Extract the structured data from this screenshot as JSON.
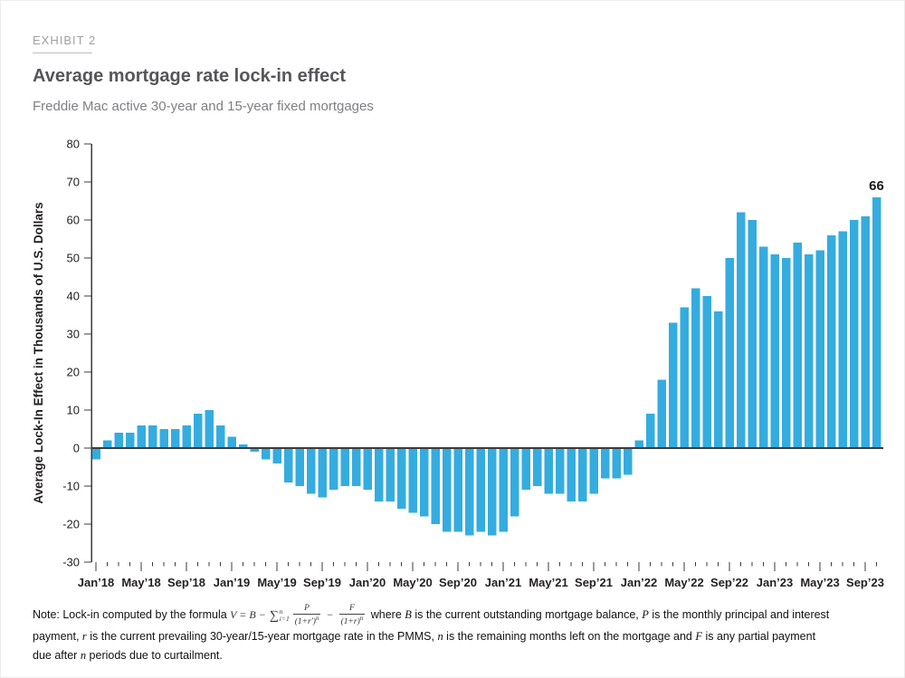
{
  "exhibit_label": "EXHIBIT 2",
  "title": "Average mortgage rate lock-in effect",
  "subtitle": "Freddie Mac active 30-year and 15-year fixed mortgages",
  "colors": {
    "bar": "#35acdf",
    "axis": "#3b3b3c",
    "tick_text": "#231f20",
    "annotation": "#1a1a1a"
  },
  "chart_data": {
    "type": "bar",
    "title": "Average mortgage rate lock-in effect",
    "subtitle": "Freddie Mac active 30-year and 15-year fixed mortgages",
    "ylabel": "Average Lock-In Effect in Thousands of U.S. Dollars",
    "ylim": [
      -30,
      80
    ],
    "ytick_interval": 10,
    "ytick_labels": [
      "80",
      "70",
      "60",
      "50",
      "40",
      "30",
      "20",
      "10",
      "0",
      "-10",
      "-20",
      "-30"
    ],
    "grid": false,
    "legend": "none",
    "x": [
      "Jan’18",
      "Feb’18",
      "Mar’18",
      "Apr’18",
      "May’18",
      "Jun’18",
      "Jul’18",
      "Aug’18",
      "Sep’18",
      "Oct’18",
      "Nov’18",
      "Dec’18",
      "Jan’19",
      "Feb’19",
      "Mar’19",
      "Apr’19",
      "May’19",
      "Jun’19",
      "Jul’19",
      "Aug’19",
      "Sep’19",
      "Oct’19",
      "Nov’19",
      "Dec’19",
      "Jan’20",
      "Feb’20",
      "Mar’20",
      "Apr’20",
      "May’20",
      "Jun’20",
      "Jul’20",
      "Aug’20",
      "Sep’20",
      "Oct’20",
      "Nov’20",
      "Dec’20",
      "Jan’21",
      "Feb’21",
      "Mar’21",
      "Apr’21",
      "May’21",
      "Jun’21",
      "Jul’21",
      "Aug’21",
      "Sep’21",
      "Oct’21",
      "Nov’21",
      "Dec’21",
      "Jan’22",
      "Feb’22",
      "Mar’22",
      "Apr’22",
      "May’22",
      "Jun’22",
      "Jul’22",
      "Aug’22",
      "Sep’22",
      "Oct’22",
      "Nov’22",
      "Dec’22",
      "Jan’23",
      "Feb’23",
      "Mar’23",
      "Apr’23",
      "May’23",
      "Jun’23",
      "Jul’23",
      "Aug’23",
      "Sep’23",
      "Oct’23"
    ],
    "values": [
      -3,
      2,
      4,
      4,
      6,
      6,
      5,
      5,
      6,
      9,
      10,
      6,
      3,
      1,
      -1,
      -3,
      -4,
      -9,
      -10,
      -12,
      -13,
      -11,
      -10,
      -10,
      -11,
      -14,
      -14,
      -16,
      -17,
      -18,
      -20,
      -22,
      -22,
      -23,
      -22,
      -23,
      -22,
      -18,
      -11,
      -10,
      -12,
      -12,
      -14,
      -14,
      -12,
      -8,
      -8,
      -7,
      2,
      9,
      18,
      33,
      37,
      42,
      40,
      36,
      50,
      62,
      60,
      53,
      51,
      50,
      54,
      51,
      52,
      56,
      57,
      60,
      61,
      66
    ],
    "xtick_every": 4,
    "xtick_labels": [
      "Jan’18",
      "May’18",
      "Sep’18",
      "Jan’19",
      "May’19",
      "Sep’19",
      "Jan’20",
      "May’20",
      "Sep’20",
      "Jan’21",
      "May’21",
      "Sep’21",
      "Jan’22",
      "May’22",
      "Sep’22",
      "Jan’23",
      "May’23",
      "Sep’23"
    ],
    "annotation": {
      "label": "66",
      "index": 69
    }
  },
  "note": {
    "formula": {
      "lhs": "V = B −",
      "sum": "∑",
      "sum_sup": "n",
      "sum_sub": "i=1",
      "frac1": {
        "num": "P",
        "den": "(1+r′)",
        "exp": "n"
      },
      "op": "−",
      "frac2": {
        "num": "F",
        "den": "(1+r)",
        "exp": "n"
      }
    },
    "lines": [
      [
        {
          "s": "p",
          "t": "Note: Lock-in computed by the formula "
        },
        {
          "s": "formula"
        },
        {
          "s": "p",
          "t": " where "
        },
        {
          "s": "m",
          "t": "B"
        },
        {
          "s": "p",
          "t": " is the current outstanding mortgage balance, "
        },
        {
          "s": "m",
          "t": "P"
        },
        {
          "s": "p",
          "t": " is the monthly principal and interest"
        }
      ],
      [
        {
          "s": "p",
          "t": "payment, "
        },
        {
          "s": "m",
          "t": "r"
        },
        {
          "s": "p",
          "t": " is the current prevailing 30-year/15-year mortgage rate in the PMMS, "
        },
        {
          "s": "m",
          "t": "n"
        },
        {
          "s": "p",
          "t": " is the remaining months left on the mortgage and "
        },
        {
          "s": "m",
          "t": "F"
        },
        {
          "s": "p",
          "t": " is any partial payment"
        }
      ],
      [
        {
          "s": "p",
          "t": "due after "
        },
        {
          "s": "m",
          "t": "n"
        },
        {
          "s": "p",
          "t": " periods due to curtailment."
        }
      ]
    ]
  }
}
